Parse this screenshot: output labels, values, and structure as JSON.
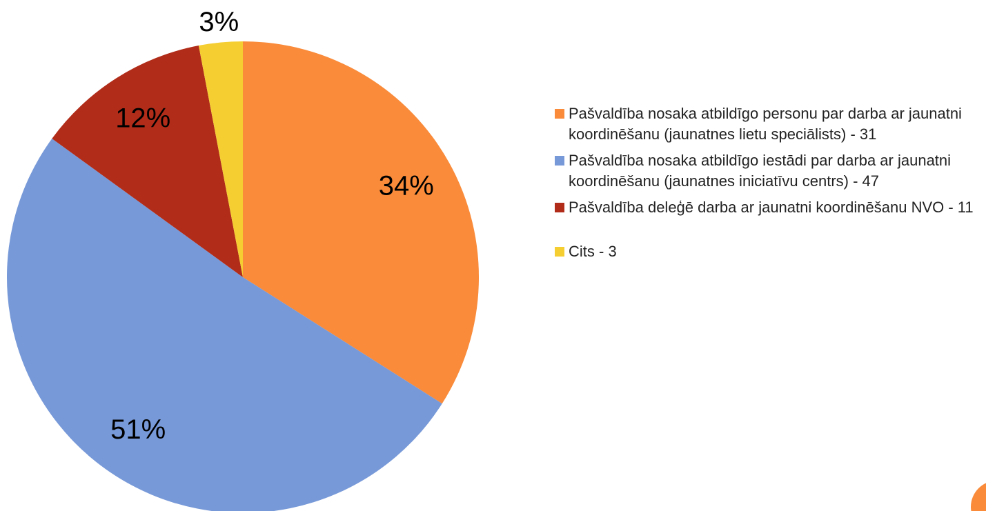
{
  "chart_data": {
    "type": "pie",
    "categories": [
      "Pašvaldība nosaka atbildīgo personu par darba ar jaunatni koordinēšanu (jaunatnes lietu speciālists) - 31",
      "Pašvaldība nosaka atbildīgo iestādi par darba ar jaunatni koordinēšanu (jaunatnes iniciatīvu centrs) - 47",
      "Pašvaldība deleģē darba ar jaunatni koordinēšanu NVO - 11",
      "Cits - 3"
    ],
    "values": [
      34,
      51,
      12,
      3
    ],
    "value_labels": [
      "34%",
      "51%",
      "12%",
      "3%"
    ],
    "colors": [
      "#f98b3a",
      "#7799d8",
      "#b12c19",
      "#f5ce32"
    ],
    "legend": "right"
  }
}
